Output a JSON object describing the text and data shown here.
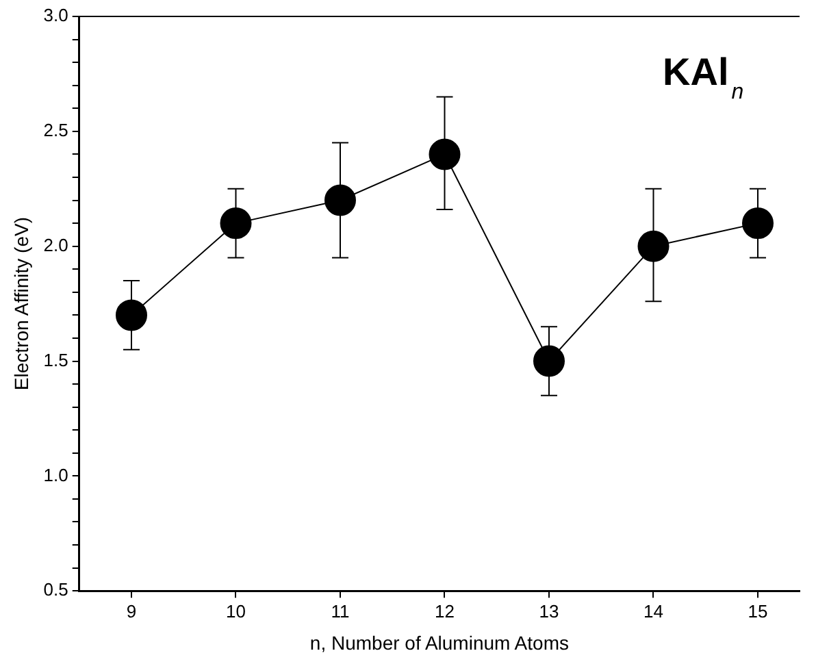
{
  "chart_data": {
    "type": "line",
    "xlabel": "n, Number of Aluminum Atoms",
    "ylabel": "Electron Affinity (eV)",
    "annotations": [
      "KAl$_{n}$"
    ],
    "x": [
      9,
      10,
      11,
      12,
      13,
      14,
      15
    ],
    "series": [
      {
        "color": "#000000",
        "values": [
          1.7,
          2.1,
          2.2,
          2.4,
          1.5,
          2.0,
          2.1
        ],
        "errors": [
          [
            1.55,
            1.85
          ],
          [
            1.95,
            2.25
          ],
          [
            1.95,
            2.45
          ],
          [
            2.16,
            2.65
          ],
          [
            1.35,
            1.65
          ],
          [
            1.76,
            2.25
          ],
          [
            1.95,
            2.25
          ]
        ]
      }
    ],
    "xlim": [
      8.5,
      15.4
    ],
    "xticks": [
      9,
      10,
      11,
      12,
      13,
      14,
      15
    ],
    "ylim": [
      0.5,
      3.0
    ],
    "yticks": [
      {
        "value": 0.5,
        "label": "0.5"
      },
      {
        "value": 0.6,
        "label": null
      },
      {
        "value": 0.7,
        "label": null
      },
      {
        "value": 0.8,
        "label": null
      },
      {
        "value": 0.9,
        "label": null
      },
      {
        "value": 1.0,
        "label": "1.0"
      },
      {
        "value": 1.1,
        "label": null
      },
      {
        "value": 1.2,
        "label": null
      },
      {
        "value": 1.3,
        "label": null
      },
      {
        "value": 1.4,
        "label": null
      },
      {
        "value": 1.5,
        "label": "1.5"
      },
      {
        "value": 1.6,
        "label": null
      },
      {
        "value": 1.7,
        "label": null
      },
      {
        "value": 1.8,
        "label": null
      },
      {
        "value": 1.9,
        "label": null
      },
      {
        "value": 2.0,
        "label": "2.0"
      },
      {
        "value": 2.1,
        "label": null
      },
      {
        "value": 2.2,
        "label": null
      },
      {
        "value": 2.3,
        "label": null
      },
      {
        "value": 2.4,
        "label": null
      },
      {
        "value": 2.5,
        "label": "2.5"
      },
      {
        "value": 2.6,
        "label": null
      },
      {
        "value": 2.7,
        "label": null
      },
      {
        "value": 2.8,
        "label": null
      },
      {
        "value": 2.9,
        "label": null
      },
      {
        "value": 3.0,
        "label": "3.0"
      }
    ],
    "marker": "circle",
    "line_style": "solid",
    "legend": false,
    "grid": false
  }
}
